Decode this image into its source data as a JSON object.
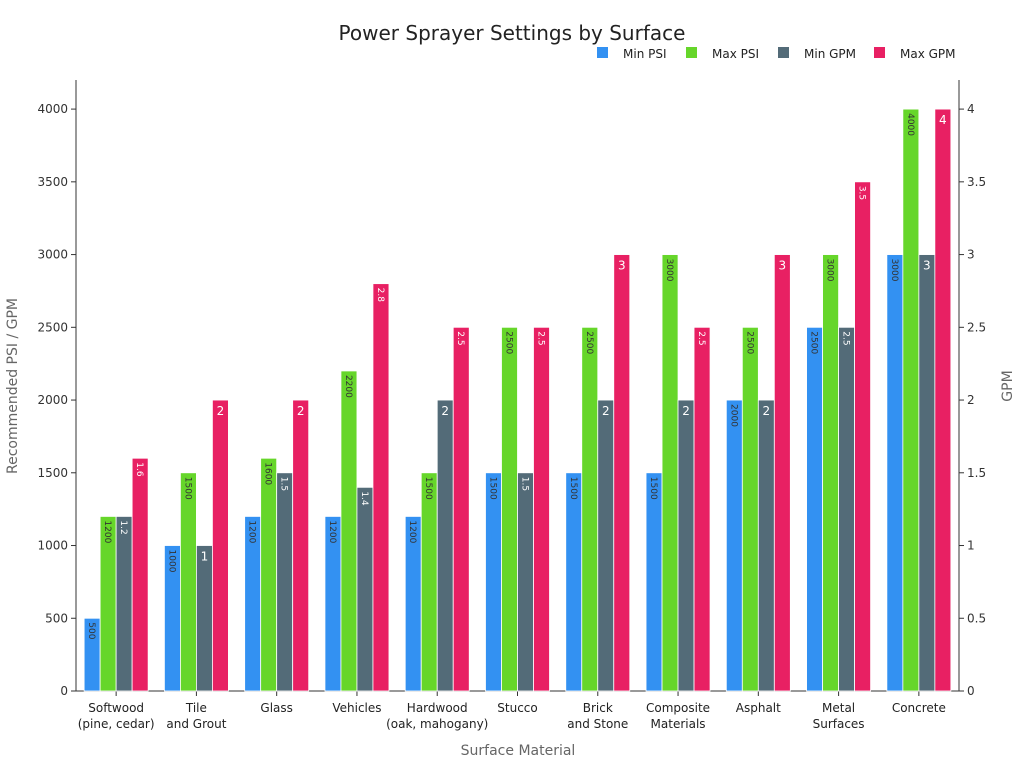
{
  "chart_data": {
    "type": "bar",
    "title": "Power Sprayer Settings by Surface",
    "xlabel": "Surface Material",
    "ylabel": "Recommended PSI / GPM",
    "y2label": "GPM",
    "ylim": [
      0,
      4200
    ],
    "y2lim": [
      0,
      4.2
    ],
    "yticks": [
      0,
      500,
      1000,
      1500,
      2000,
      2500,
      3000,
      3500,
      4000
    ],
    "y2ticks": [
      0,
      0.5,
      1,
      1.5,
      2,
      2.5,
      3,
      3.5,
      4
    ],
    "y2ticklabels": [
      "0",
      "0.5",
      "1",
      "1.5",
      "2",
      "2.5",
      "3",
      "3.5",
      "4"
    ],
    "legend_position": "top-right",
    "categories": [
      [
        "Softwood",
        "(pine, cedar)"
      ],
      [
        "Tile",
        "and Grout"
      ],
      [
        "Glass"
      ],
      [
        "Vehicles"
      ],
      [
        "Hardwood",
        "(oak, mahogany)"
      ],
      [
        "Stucco"
      ],
      [
        "Brick",
        "and Stone"
      ],
      [
        "Composite",
        "Materials"
      ],
      [
        "Asphalt"
      ],
      [
        "Metal",
        "Surfaces"
      ],
      [
        "Concrete"
      ]
    ],
    "series": [
      {
        "name": "Min PSI",
        "axis": "left",
        "color": "#3391f2",
        "values": [
          500,
          1000,
          1200,
          1200,
          1200,
          1500,
          1500,
          1500,
          2000,
          2500,
          3000
        ],
        "labels": [
          "500",
          "1000",
          "1200",
          "1200",
          "1200",
          "1500",
          "1500",
          "1500",
          "2000",
          "2500",
          "3000"
        ]
      },
      {
        "name": "Max PSI",
        "axis": "left",
        "color": "#66d62a",
        "values": [
          1200,
          1500,
          1600,
          2200,
          1500,
          2500,
          2500,
          3000,
          2500,
          3000,
          4000
        ],
        "labels": [
          "1200",
          "1500",
          "1600",
          "2200",
          "1500",
          "2500",
          "2500",
          "3000",
          "2500",
          "3000",
          "4000"
        ]
      },
      {
        "name": "Min GPM",
        "axis": "right",
        "color": "#536b78",
        "values": [
          1.2,
          1,
          1.5,
          1.4,
          2,
          1.5,
          2,
          2,
          2,
          2.5,
          3
        ],
        "labels": [
          "1.2",
          "1",
          "1.5",
          "1.4",
          "2",
          "1.5",
          "2",
          "2",
          "2",
          "2.5",
          "3"
        ]
      },
      {
        "name": "Max GPM",
        "axis": "right",
        "color": "#e82063",
        "values": [
          1.6,
          2,
          2,
          2.8,
          2.5,
          2.5,
          3,
          2.5,
          3,
          3.5,
          4
        ],
        "labels": [
          "1.6",
          "2",
          "2",
          "2.8",
          "2.5",
          "2.5",
          "3",
          "2.5",
          "3",
          "3.5",
          "4"
        ]
      }
    ],
    "grid": false
  }
}
